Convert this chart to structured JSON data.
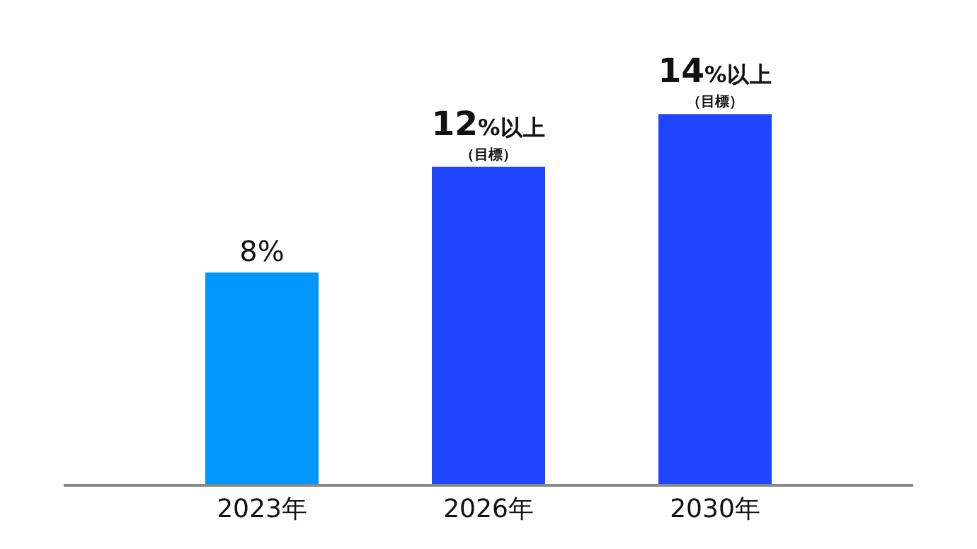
{
  "chart_data": {
    "type": "bar",
    "categories": [
      "2023年",
      "2026年",
      "2030年"
    ],
    "values": [
      8,
      12,
      14
    ],
    "colors": [
      "#0096ff",
      "#1e46ff",
      "#1e46ff"
    ],
    "value_labels": [
      "8%",
      "12%以上（目標）",
      "14%以上（目標）"
    ],
    "legend": false,
    "tick_labels": "x"
  }
}
